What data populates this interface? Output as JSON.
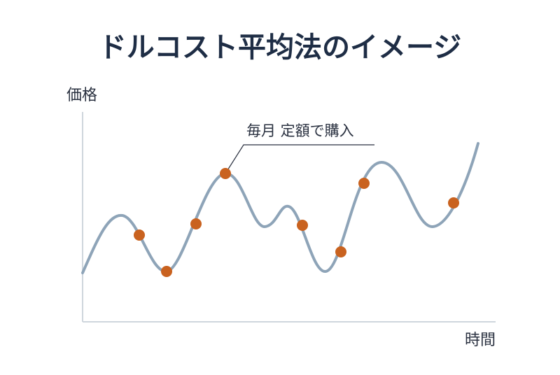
{
  "title": "ドルコスト平均法のイメージ",
  "y_axis_label": "価格",
  "x_axis_label": "時間",
  "annotation": "毎月 定額で購入"
}
